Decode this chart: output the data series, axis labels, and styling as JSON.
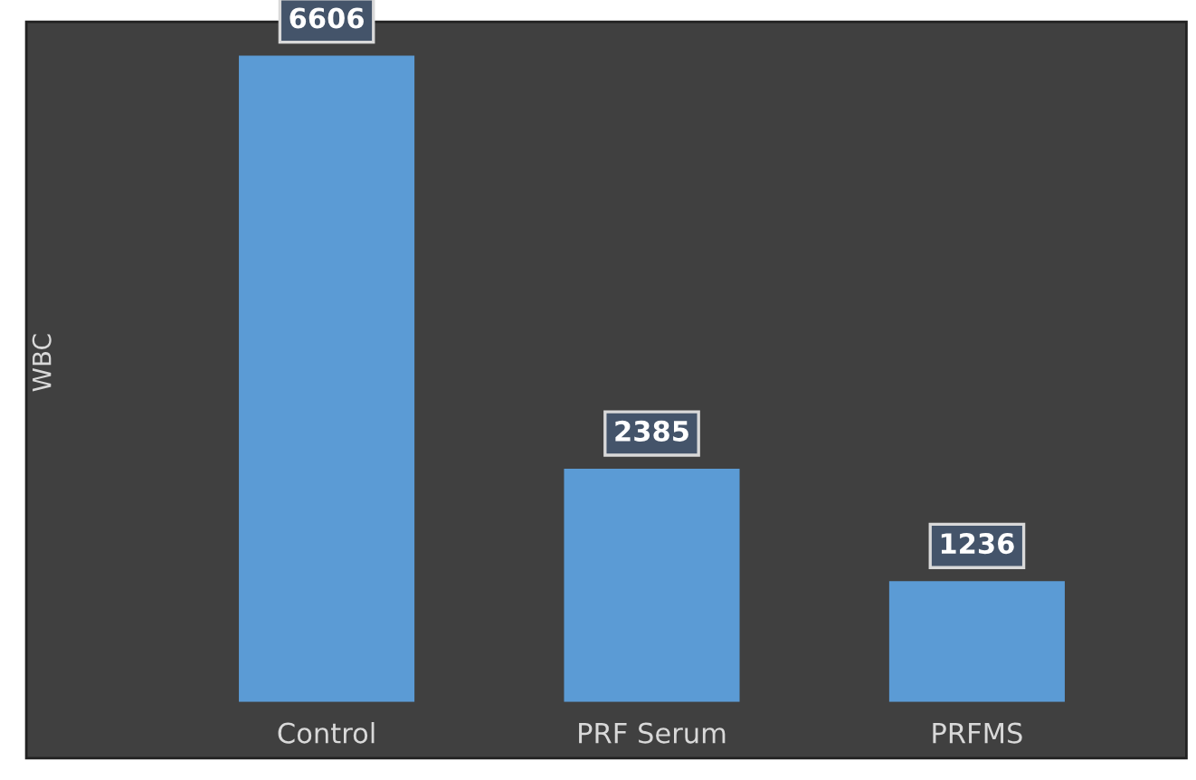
{
  "chart_data": {
    "type": "bar",
    "ylabel": "WBC",
    "categories": [
      "Control",
      "PRF Serum",
      "PRFMS"
    ],
    "values": [
      6606,
      2385,
      1236
    ],
    "color": "#5b9bd5",
    "data_labels": true,
    "grid": false,
    "legend": false
  }
}
